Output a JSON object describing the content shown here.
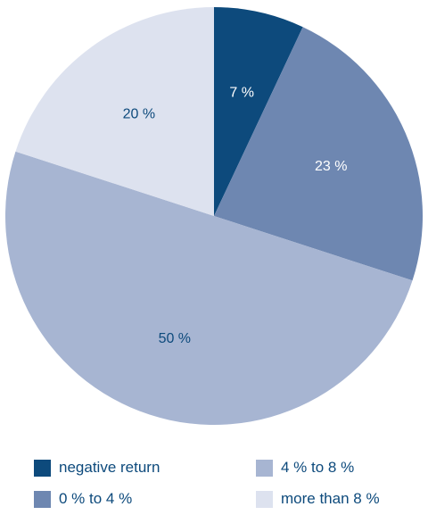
{
  "chart_data": {
    "type": "pie",
    "title": "",
    "slices": [
      {
        "label": "negative return",
        "value": 7,
        "display": "7 %",
        "color": "#0d4a7c",
        "text_color": "#ffffff"
      },
      {
        "label": "0 % to 4 %",
        "value": 23,
        "display": "23 %",
        "color": "#6e87b1",
        "text_color": "#ffffff"
      },
      {
        "label": "4 % to 8 %",
        "value": 50,
        "display": "50 %",
        "color": "#a7b5d2",
        "text_color": "#0d4a7c"
      },
      {
        "label": "more than 8 %",
        "value": 20,
        "display": "20 %",
        "color": "#dde2ef",
        "text_color": "#0d4a7c"
      }
    ],
    "start_angle": "12 o'clock",
    "direction": "clockwise",
    "legend": {
      "placement": "bottom",
      "columns": [
        [
          "negative return",
          "0 % to 4 %"
        ],
        [
          "4 % to 8 %",
          "more than 8 %"
        ]
      ]
    }
  }
}
